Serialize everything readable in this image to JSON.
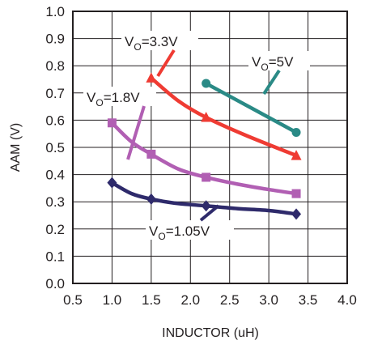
{
  "chart_data": {
    "type": "line",
    "xlabel": "INDUCTOR (uH)",
    "ylabel": "AAM (V)",
    "xlim": [
      0.5,
      4.0
    ],
    "ylim": [
      0.0,
      1.0
    ],
    "x_ticks": [
      "0.5",
      "1.0",
      "1.5",
      "2.0",
      "2.5",
      "3.0",
      "3.5",
      "4.0"
    ],
    "y_ticks": [
      "0.0",
      "0.1",
      "0.2",
      "0.3",
      "0.4",
      "0.5",
      "0.6",
      "0.7",
      "0.8",
      "0.9",
      "1.0"
    ],
    "grid": true,
    "series": [
      {
        "name": "VO=1.05V",
        "label_main": "V",
        "label_sub": "O",
        "label_rest": "=1.05V",
        "color": "#2e2a6b",
        "marker": "diamond",
        "x": [
          1.0,
          1.5,
          2.2,
          3.35
        ],
        "y": [
          0.37,
          0.31,
          0.285,
          0.255
        ],
        "curve": [
          [
            1.0,
            0.37
          ],
          [
            1.25,
            0.33
          ],
          [
            1.5,
            0.31
          ],
          [
            1.8,
            0.295
          ],
          [
            2.2,
            0.285
          ],
          [
            2.6,
            0.275
          ],
          [
            3.0,
            0.268
          ],
          [
            3.35,
            0.255
          ]
        ]
      },
      {
        "name": "VO=1.8V",
        "label_main": "V",
        "label_sub": "O",
        "label_rest": "=1.8V",
        "color": "#b15fb3",
        "marker": "square",
        "x": [
          1.0,
          1.5,
          2.2,
          3.35
        ],
        "y": [
          0.59,
          0.475,
          0.39,
          0.33
        ],
        "curve": [
          [
            1.0,
            0.59
          ],
          [
            1.25,
            0.52
          ],
          [
            1.5,
            0.475
          ],
          [
            1.85,
            0.42
          ],
          [
            2.2,
            0.39
          ],
          [
            2.6,
            0.365
          ],
          [
            3.0,
            0.345
          ],
          [
            3.35,
            0.33
          ]
        ]
      },
      {
        "name": "VO=3.3V",
        "label_main": "V",
        "label_sub": "O",
        "label_rest": "=3.3V",
        "color": "#ef3b33",
        "marker": "triangle",
        "x": [
          1.5,
          2.2,
          3.35
        ],
        "y": [
          0.755,
          0.61,
          0.47
        ],
        "curve": [
          [
            1.5,
            0.755
          ],
          [
            1.85,
            0.67
          ],
          [
            2.2,
            0.61
          ],
          [
            2.7,
            0.545
          ],
          [
            3.35,
            0.47
          ]
        ]
      },
      {
        "name": "VO=5V",
        "label_main": "V",
        "label_sub": "O",
        "label_rest": "=5V",
        "color": "#2a8a86",
        "marker": "circle",
        "x": [
          2.2,
          3.35
        ],
        "y": [
          0.735,
          0.555
        ],
        "curve": [
          [
            2.2,
            0.735
          ],
          [
            3.35,
            0.555
          ]
        ]
      }
    ]
  }
}
